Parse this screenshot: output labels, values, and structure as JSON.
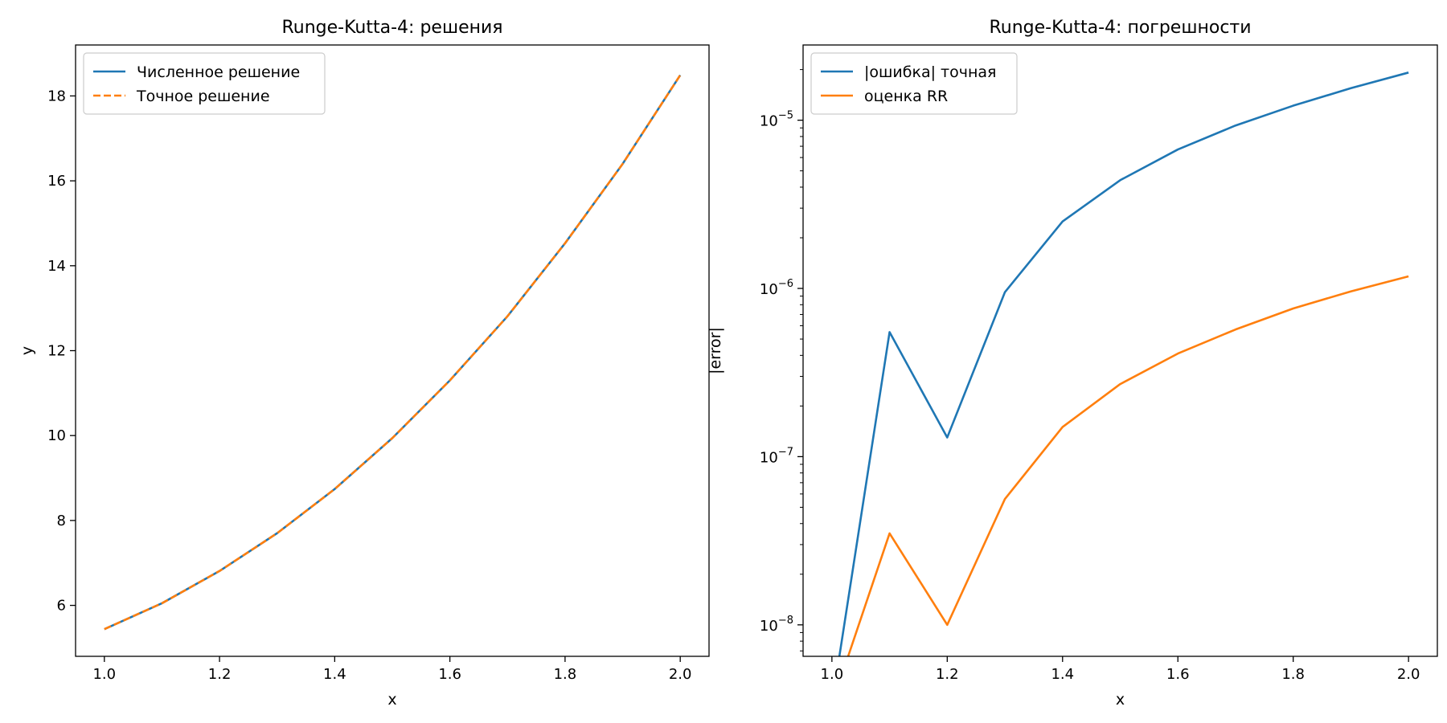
{
  "chart_data": [
    {
      "type": "line",
      "title": "Runge-Kutta-4: решения",
      "xlabel": "x",
      "ylabel": "y",
      "xlim": [
        0.95,
        2.05
      ],
      "ylim": [
        4.8,
        19.2
      ],
      "yscale": "linear",
      "xticks": [
        1.0,
        1.2,
        1.4,
        1.6,
        1.8,
        2.0
      ],
      "xtick_labels": [
        "1.0",
        "1.2",
        "1.4",
        "1.6",
        "1.8",
        "2.0"
      ],
      "yticks": [
        6,
        8,
        10,
        12,
        14,
        16,
        18
      ],
      "ytick_labels": [
        "6",
        "8",
        "10",
        "12",
        "14",
        "16",
        "18"
      ],
      "legend_position": "upper-left",
      "grid": false,
      "x": [
        1.0,
        1.1,
        1.2,
        1.3,
        1.4,
        1.5,
        1.6,
        1.7,
        1.8,
        1.9,
        2.0
      ],
      "series": [
        {
          "name": "Численное решение",
          "color": "#1f77b4",
          "style": "solid",
          "values": [
            5.44,
            6.05,
            6.81,
            7.7,
            8.74,
            9.94,
            11.3,
            12.81,
            14.53,
            16.4,
            18.49
          ]
        },
        {
          "name": "Точное решение",
          "color": "#ff7f0e",
          "style": "dashed",
          "values": [
            5.44,
            6.05,
            6.81,
            7.7,
            8.74,
            9.94,
            11.3,
            12.81,
            14.53,
            16.4,
            18.49
          ]
        }
      ]
    },
    {
      "type": "line",
      "title": "Runge-Kutta-4: погрешности",
      "xlabel": "x",
      "ylabel": "|error|",
      "xlim": [
        0.95,
        2.05
      ],
      "ylim": [
        6.5e-09,
        2.8e-05
      ],
      "yscale": "log",
      "xticks": [
        1.0,
        1.2,
        1.4,
        1.6,
        1.8,
        2.0
      ],
      "xtick_labels": [
        "1.0",
        "1.2",
        "1.4",
        "1.6",
        "1.8",
        "2.0"
      ],
      "yticks": [
        1e-08,
        1e-07,
        1e-06,
        1e-05
      ],
      "ytick_labels": [
        {
          "base": "10",
          "exp": "−8"
        },
        {
          "base": "10",
          "exp": "−7"
        },
        {
          "base": "10",
          "exp": "−6"
        },
        {
          "base": "10",
          "exp": "−5"
        }
      ],
      "legend_position": "upper-left",
      "grid": false,
      "x": [
        1.0,
        1.1,
        1.2,
        1.3,
        1.4,
        1.5,
        1.6,
        1.7,
        1.8,
        1.9,
        2.0
      ],
      "series": [
        {
          "name": "|ошибка| точная",
          "color": "#1f77b4",
          "style": "solid",
          "values": [
            0,
            5.5e-07,
            1.3e-07,
            9.5e-07,
            2.5e-06,
            4.4e-06,
            6.7e-06,
            9.3e-06,
            1.22e-05,
            1.55e-05,
            1.92e-05
          ]
        },
        {
          "name": "оценка RR",
          "color": "#ff7f0e",
          "style": "solid",
          "values": [
            0,
            3.5e-08,
            1e-08,
            5.6e-08,
            1.5e-07,
            2.7e-07,
            4.1e-07,
            5.7e-07,
            7.6e-07,
            9.6e-07,
            1.18e-06
          ]
        }
      ]
    }
  ]
}
